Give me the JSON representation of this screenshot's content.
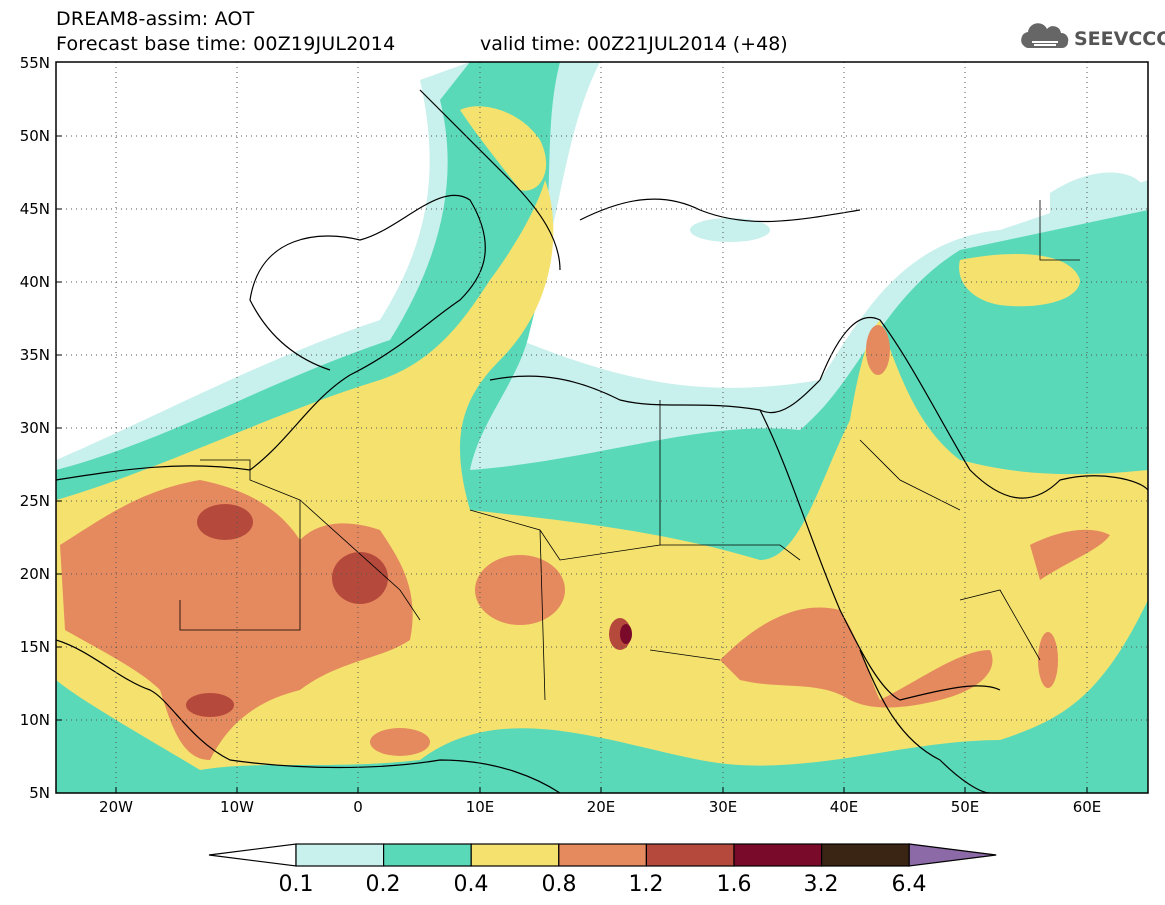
{
  "header": {
    "title": "DREAM8-assim: AOT",
    "base_time_line": "Forecast base time: 00Z19JUL2014",
    "valid_time_line": "valid time: 00Z21JUL2014 (+48)",
    "logo_text": "SEEVCCC",
    "logo_icon": "cloud-icon"
  },
  "map": {
    "lat_labels": [
      "55N",
      "50N",
      "45N",
      "40N",
      "35N",
      "30N",
      "25N",
      "20N",
      "15N",
      "10N",
      "5N"
    ],
    "lon_labels": [
      "20W",
      "10W",
      "0",
      "10E",
      "20E",
      "30E",
      "40E",
      "50E",
      "60E"
    ],
    "lat_range": [
      5,
      55
    ],
    "lon_range": [
      -25,
      65
    ],
    "gridlines": "dotted"
  },
  "colorbar": {
    "ticks": [
      "0.1",
      "0.2",
      "0.4",
      "0.8",
      "1.2",
      "1.6",
      "3.2",
      "6.4"
    ],
    "colors": [
      "#ffffff",
      "#c8f0ec",
      "#5ad9b8",
      "#f5e26e",
      "#e58a5e",
      "#b54a3c",
      "#7a0a2a",
      "#3a2414",
      "#8c6aa8"
    ]
  }
}
